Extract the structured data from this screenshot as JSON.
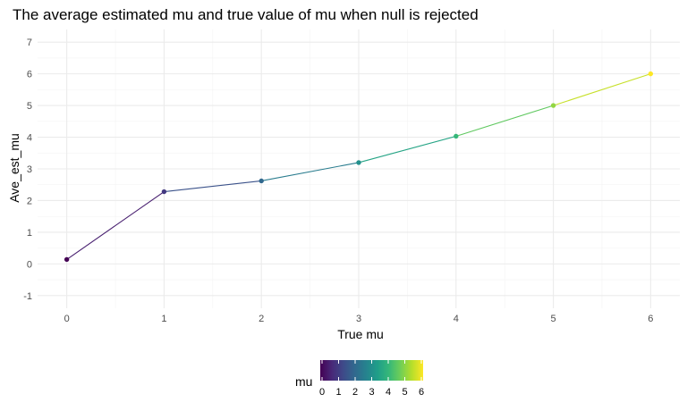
{
  "chart_data": {
    "type": "line",
    "title": "The average estimated mu and true value of mu when null is rejected",
    "xlabel": "True mu",
    "ylabel": "Ave_est_mu",
    "x": [
      0,
      1,
      2,
      3,
      4,
      5,
      6
    ],
    "series": [
      {
        "values": [
          0.14,
          2.28,
          2.62,
          3.2,
          4.03,
          5.0,
          6.0
        ]
      }
    ],
    "xlim": [
      -0.3,
      6.3
    ],
    "ylim": [
      -1.4,
      7.4
    ],
    "x_ticks": [
      "0",
      "1",
      "2",
      "3",
      "4",
      "5",
      "6"
    ],
    "y_ticks": [
      "-1",
      "0",
      "1",
      "2",
      "3",
      "4",
      "5",
      "6",
      "7"
    ],
    "grid": true,
    "color_scale": "viridis",
    "legend": {
      "title": "mu",
      "position": "bottom",
      "ticks": [
        "0",
        "1",
        "2",
        "3",
        "4",
        "5",
        "6"
      ],
      "range": [
        0,
        6
      ]
    }
  }
}
